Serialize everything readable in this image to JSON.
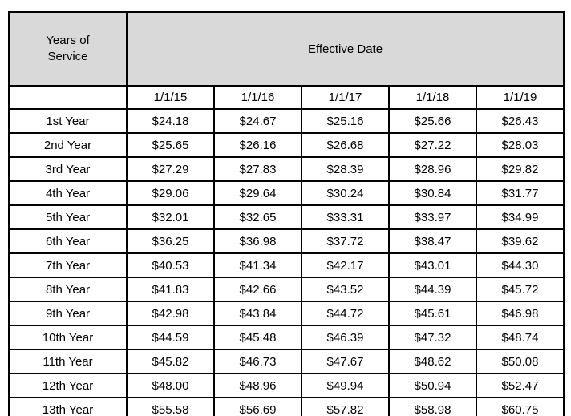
{
  "colors": {
    "header_bg": "#d9d9d9",
    "border": "#000000",
    "background": "#ffffff",
    "text": "#000000"
  },
  "table": {
    "corner_header": "Years of\nService",
    "span_header": "Effective Date",
    "columns": [
      "1/1/15",
      "1/1/16",
      "1/1/17",
      "1/1/18",
      "1/1/19"
    ],
    "rows": [
      {
        "label": "1st Year",
        "values": [
          "$24.18",
          "$24.67",
          "$25.16",
          "$25.66",
          "$26.43"
        ]
      },
      {
        "label": "2nd Year",
        "values": [
          "$25.65",
          "$26.16",
          "$26.68",
          "$27.22",
          "$28.03"
        ]
      },
      {
        "label": "3rd Year",
        "values": [
          "$27.29",
          "$27.83",
          "$28.39",
          "$28.96",
          "$29.82"
        ]
      },
      {
        "label": "4th Year",
        "values": [
          "$29.06",
          "$29.64",
          "$30.24",
          "$30.84",
          "$31.77"
        ]
      },
      {
        "label": "5th Year",
        "values": [
          "$32.01",
          "$32.65",
          "$33.31",
          "$33.97",
          "$34.99"
        ]
      },
      {
        "label": "6th Year",
        "values": [
          "$36.25",
          "$36.98",
          "$37.72",
          "$38.47",
          "$39.62"
        ]
      },
      {
        "label": "7th Year",
        "values": [
          "$40.53",
          "$41.34",
          "$42.17",
          "$43.01",
          "$44.30"
        ]
      },
      {
        "label": "8th Year",
        "values": [
          "$41.83",
          "$42.66",
          "$43.52",
          "$44.39",
          "$45.72"
        ]
      },
      {
        "label": "9th Year",
        "values": [
          "$42.98",
          "$43.84",
          "$44.72",
          "$45.61",
          "$46.98"
        ]
      },
      {
        "label": "10th Year",
        "values": [
          "$44.59",
          "$45.48",
          "$46.39",
          "$47.32",
          "$48.74"
        ]
      },
      {
        "label": "11th Year",
        "values": [
          "$45.82",
          "$46.73",
          "$47.67",
          "$48.62",
          "$50.08"
        ]
      },
      {
        "label": "12th Year",
        "values": [
          "$48.00",
          "$48.96",
          "$49.94",
          "$50.94",
          "$52.47"
        ]
      },
      {
        "label": "13th Year",
        "values": [
          "$55.58",
          "$56.69",
          "$57.82",
          "$58.98",
          "$60.75"
        ]
      }
    ]
  }
}
